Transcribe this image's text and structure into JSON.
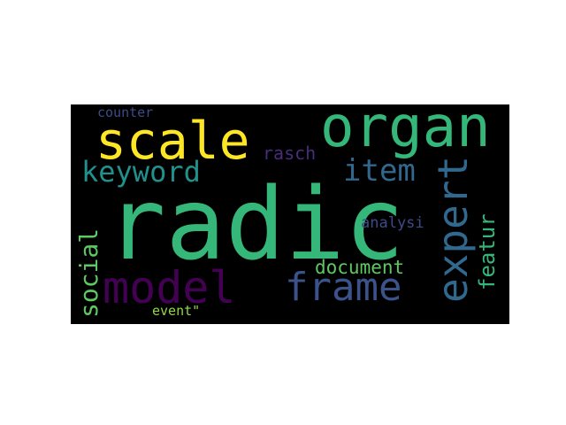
{
  "wordcloud": {
    "background": "#000000",
    "words": {
      "radic": {
        "text": "radic",
        "color": "#35b779"
      },
      "organ": {
        "text": "organ",
        "color": "#35b779"
      },
      "scale": {
        "text": "scale",
        "color": "#fde725"
      },
      "model": {
        "text": "model",
        "color": "#440154"
      },
      "frame": {
        "text": "frame",
        "color": "#3b528b"
      },
      "expert": {
        "text": "expert",
        "color": "#31688e"
      },
      "keyword": {
        "text": "keyword",
        "color": "#21918c"
      },
      "item": {
        "text": "item",
        "color": "#31688e"
      },
      "social": {
        "text": "social",
        "color": "#5ec962"
      },
      "featur": {
        "text": "featur",
        "color": "#35b779"
      },
      "document": {
        "text": "document",
        "color": "#5ec962"
      },
      "rasch": {
        "text": "rasch",
        "color": "#472d7b"
      },
      "analysi": {
        "text": "analysi",
        "color": "#3e4a89"
      },
      "counter": {
        "text": "counter",
        "color": "#3e4a89"
      },
      "event": {
        "text": "event\"",
        "color": "#90d743"
      }
    }
  }
}
